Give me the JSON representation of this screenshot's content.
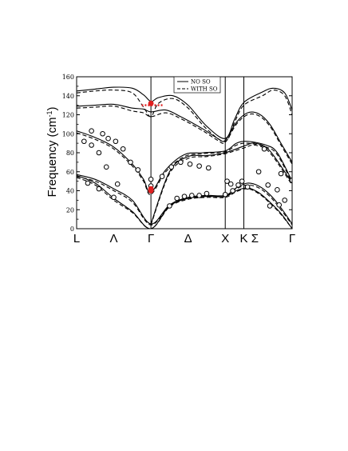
{
  "chart_data": {
    "type": "line",
    "title": "",
    "ylabel": "Frequency (cm",
    "ylabel_sup": "-1",
    "ylabel_close": ")",
    "xlabel": "",
    "ylim": [
      0,
      160
    ],
    "yticks": [
      0,
      20,
      40,
      60,
      80,
      100,
      120,
      140,
      160
    ],
    "grid": false,
    "legend_position": "top-center",
    "x_range": [
      0,
      5.8
    ],
    "kpoints": [
      {
        "label": "L",
        "x": 0
      },
      {
        "label": "Λ",
        "x": 1
      },
      {
        "label": "Γ",
        "x": 2
      },
      {
        "label": "Δ",
        "x": 3
      },
      {
        "label": "X",
        "x": 4
      },
      {
        "label": "K",
        "x": 4.5
      },
      {
        "label": "Σ",
        "x": 4.8
      },
      {
        "label": "Γ",
        "x": 5.8
      }
    ],
    "vlines": [
      2,
      4,
      4.5
    ],
    "series": [
      {
        "name": "NO SO",
        "style": "solid",
        "curves": [
          [
            [
              0,
              145
            ],
            [
              0.5,
              147
            ],
            [
              1,
              149
            ],
            [
              1.5,
              148
            ],
            [
              1.8,
              141
            ],
            [
              2,
              134
            ],
            [
              2.2,
              138
            ],
            [
              2.6,
              140
            ],
            [
              3,
              130
            ],
            [
              3.5,
              108
            ],
            [
              4,
              95
            ],
            [
              4.25,
              115
            ],
            [
              4.5,
              133
            ],
            [
              5,
              144
            ],
            [
              5.3,
              148
            ],
            [
              5.6,
              143
            ],
            [
              5.8,
              125
            ]
          ],
          [
            [
              0,
              129
            ],
            [
              0.5,
              130
            ],
            [
              1,
              131
            ],
            [
              1.5,
              127
            ],
            [
              1.8,
              126
            ],
            [
              2,
              123
            ],
            [
              2.4,
              125
            ],
            [
              2.8,
              118
            ],
            [
              3.4,
              105
            ],
            [
              3.8,
              95
            ],
            [
              4,
              93
            ],
            [
              4.3,
              112
            ],
            [
              4.6,
              122
            ],
            [
              4.9,
              121
            ],
            [
              5.2,
              110
            ],
            [
              5.5,
              90
            ],
            [
              5.8,
              70
            ]
          ],
          [
            [
              0,
              103
            ],
            [
              0.5,
              96
            ],
            [
              1,
              86
            ],
            [
              1.5,
              68
            ],
            [
              1.8,
              52
            ],
            [
              2,
              38
            ],
            [
              2.4,
              62
            ],
            [
              2.9,
              78
            ],
            [
              3.4,
              80
            ],
            [
              4,
              82
            ],
            [
              4.3,
              90
            ],
            [
              4.6,
              92
            ],
            [
              5.1,
              88
            ],
            [
              5.4,
              80
            ],
            [
              5.8,
              50
            ]
          ],
          [
            [
              2,
              5
            ],
            [
              2.5,
              60
            ],
            [
              3,
              76
            ],
            [
              3.5,
              77
            ],
            [
              4,
              80
            ],
            [
              4.5,
              87
            ],
            [
              4.8,
              90
            ],
            [
              5.2,
              82
            ],
            [
              5.8,
              48
            ]
          ],
          [
            [
              0,
              57
            ],
            [
              0.5,
              52
            ],
            [
              1,
              42
            ],
            [
              1.5,
              30
            ],
            [
              2,
              5
            ],
            [
              2.5,
              25
            ],
            [
              3,
              33
            ],
            [
              3.5,
              35
            ],
            [
              4,
              35
            ],
            [
              4.3,
              43
            ],
            [
              4.6,
              48
            ],
            [
              4.9,
              45
            ],
            [
              5.2,
              36
            ],
            [
              5.5,
              22
            ],
            [
              5.8,
              5
            ]
          ],
          [
            [
              0,
              56
            ],
            [
              0.5,
              48
            ],
            [
              1,
              32
            ],
            [
              1.5,
              18
            ],
            [
              2,
              0
            ],
            [
              2.5,
              24
            ],
            [
              3,
              32
            ],
            [
              3.5,
              34
            ],
            [
              4,
              34
            ],
            [
              4.3,
              40
            ],
            [
              4.6,
              43
            ],
            [
              4.9,
              38
            ],
            [
              5.2,
              28
            ],
            [
              5.5,
              16
            ],
            [
              5.8,
              0
            ]
          ]
        ]
      },
      {
        "name": "WITH SO",
        "style": "dashed",
        "curves": [
          [
            [
              0,
              143
            ],
            [
              0.5,
              145
            ],
            [
              1,
              146
            ],
            [
              1.5,
              143
            ],
            [
              1.8,
              128
            ],
            [
              2,
              118
            ],
            [
              2.2,
              132
            ],
            [
              2.6,
              137
            ],
            [
              3,
              127
            ],
            [
              3.5,
              105
            ],
            [
              4,
              92
            ],
            [
              4.25,
              112
            ],
            [
              4.5,
              130
            ],
            [
              5,
              140
            ],
            [
              5.3,
              146
            ],
            [
              5.6,
              140
            ],
            [
              5.8,
              120
            ]
          ],
          [
            [
              0,
              127
            ],
            [
              0.5,
              128
            ],
            [
              1,
              129
            ],
            [
              1.5,
              124
            ],
            [
              1.8,
              122
            ],
            [
              2,
              118
            ],
            [
              2.4,
              122
            ],
            [
              2.8,
              116
            ],
            [
              3.4,
              103
            ],
            [
              3.8,
              93
            ],
            [
              4,
              91
            ],
            [
              4.3,
              110
            ],
            [
              4.6,
              120
            ],
            [
              4.9,
              119
            ],
            [
              5.2,
              108
            ],
            [
              5.5,
              88
            ],
            [
              5.8,
              68
            ]
          ],
          [
            [
              0,
              101
            ],
            [
              0.5,
              94
            ],
            [
              1,
              84
            ],
            [
              1.5,
              66
            ],
            [
              1.8,
              50
            ],
            [
              2,
              36
            ],
            [
              2.4,
              60
            ],
            [
              2.9,
              76
            ],
            [
              3.4,
              79
            ],
            [
              4,
              81
            ],
            [
              4.3,
              88
            ],
            [
              4.6,
              90
            ],
            [
              5.1,
              86
            ],
            [
              5.4,
              78
            ],
            [
              5.8,
              48
            ]
          ],
          [
            [
              2,
              4
            ],
            [
              2.5,
              58
            ],
            [
              3,
              74
            ],
            [
              3.5,
              76
            ],
            [
              4,
              79
            ],
            [
              4.5,
              85
            ],
            [
              4.8,
              88
            ],
            [
              5.2,
              80
            ],
            [
              5.8,
              46
            ]
          ],
          [
            [
              0,
              55
            ],
            [
              0.5,
              50
            ],
            [
              1,
              40
            ],
            [
              1.5,
              28
            ],
            [
              2,
              4
            ],
            [
              2.5,
              24
            ],
            [
              3,
              32
            ],
            [
              3.5,
              34
            ],
            [
              4,
              34
            ],
            [
              4.3,
              42
            ],
            [
              4.6,
              46
            ],
            [
              4.9,
              43
            ],
            [
              5.2,
              34
            ],
            [
              5.5,
              20
            ],
            [
              5.8,
              4
            ]
          ],
          [
            [
              0,
              54
            ],
            [
              0.5,
              46
            ],
            [
              1,
              30
            ],
            [
              1.5,
              17
            ],
            [
              2,
              0
            ],
            [
              2.5,
              23
            ],
            [
              3,
              31
            ],
            [
              3.5,
              33
            ],
            [
              4,
              33
            ],
            [
              4.3,
              39
            ],
            [
              4.6,
              42
            ],
            [
              4.9,
              37
            ],
            [
              5.2,
              27
            ],
            [
              5.5,
              15
            ],
            [
              5.8,
              0
            ]
          ]
        ]
      }
    ],
    "highlight_segment": [
      [
        1.75,
        130
      ],
      [
        2,
        130
      ],
      [
        2.35,
        130
      ]
    ],
    "highlight_points": [
      [
        2,
        132
      ],
      [
        2,
        42
      ],
      [
        2,
        40
      ]
    ],
    "experimental_points": [
      [
        0.2,
        92
      ],
      [
        0.4,
        88
      ],
      [
        0.6,
        80
      ],
      [
        0.8,
        65
      ],
      [
        1.1,
        47
      ],
      [
        0.4,
        103
      ],
      [
        0.7,
        100
      ],
      [
        0.85,
        95
      ],
      [
        1.05,
        92
      ],
      [
        1.25,
        84
      ],
      [
        1.45,
        70
      ],
      [
        1.65,
        62
      ],
      [
        2,
        52
      ],
      [
        0.3,
        48
      ],
      [
        0.6,
        42
      ],
      [
        1,
        33
      ],
      [
        2,
        45
      ],
      [
        2.3,
        55
      ],
      [
        2.55,
        65
      ],
      [
        2.8,
        70
      ],
      [
        3.05,
        68
      ],
      [
        3.3,
        66
      ],
      [
        3.55,
        64
      ],
      [
        2.5,
        24
      ],
      [
        2.7,
        32
      ],
      [
        2.9,
        34
      ],
      [
        3.1,
        35
      ],
      [
        3.3,
        35
      ],
      [
        3.5,
        37
      ],
      [
        4.05,
        50
      ],
      [
        4.15,
        47
      ],
      [
        4.35,
        46
      ],
      [
        4.6,
        44
      ],
      [
        4.9,
        60
      ],
      [
        5.15,
        46
      ],
      [
        5.4,
        41
      ],
      [
        5.6,
        30
      ],
      [
        4,
        36
      ],
      [
        4.2,
        40
      ],
      [
        4.45,
        50
      ],
      [
        5.05,
        84
      ],
      [
        5.5,
        58
      ],
      [
        5.8,
        51
      ],
      [
        5.2,
        24
      ],
      [
        5.45,
        25
      ]
    ],
    "colors": {
      "axis": "#000000",
      "line": "#000000",
      "highlight": "#e02020"
    }
  }
}
